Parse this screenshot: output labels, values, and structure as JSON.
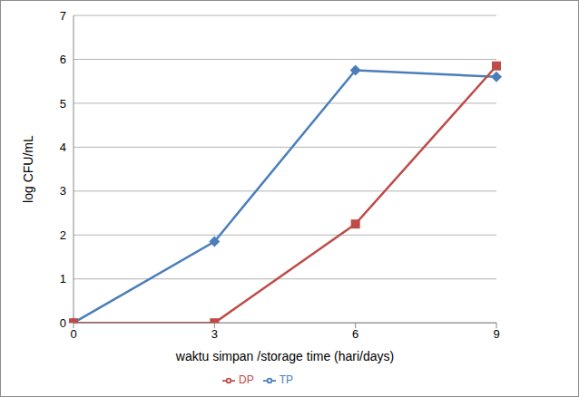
{
  "chart_data": {
    "type": "line",
    "x_label": "waktu simpan /storage time (hari/days)",
    "y_label": "log CFU/mL",
    "categories": [
      "0",
      "3",
      "6",
      "9"
    ],
    "series": [
      {
        "name": "TP",
        "color": "#4a7ebb",
        "marker": "diamond",
        "values": [
          0,
          1.85,
          5.75,
          5.6
        ]
      },
      {
        "name": "DP",
        "color": "#be4b48",
        "marker": "square",
        "values": [
          0,
          0,
          2.25,
          5.85
        ]
      }
    ],
    "ylim": [
      0,
      7
    ],
    "yticks": [
      0,
      1,
      2,
      3,
      4,
      5,
      6,
      7
    ],
    "grid": true,
    "legend": "bottom"
  }
}
